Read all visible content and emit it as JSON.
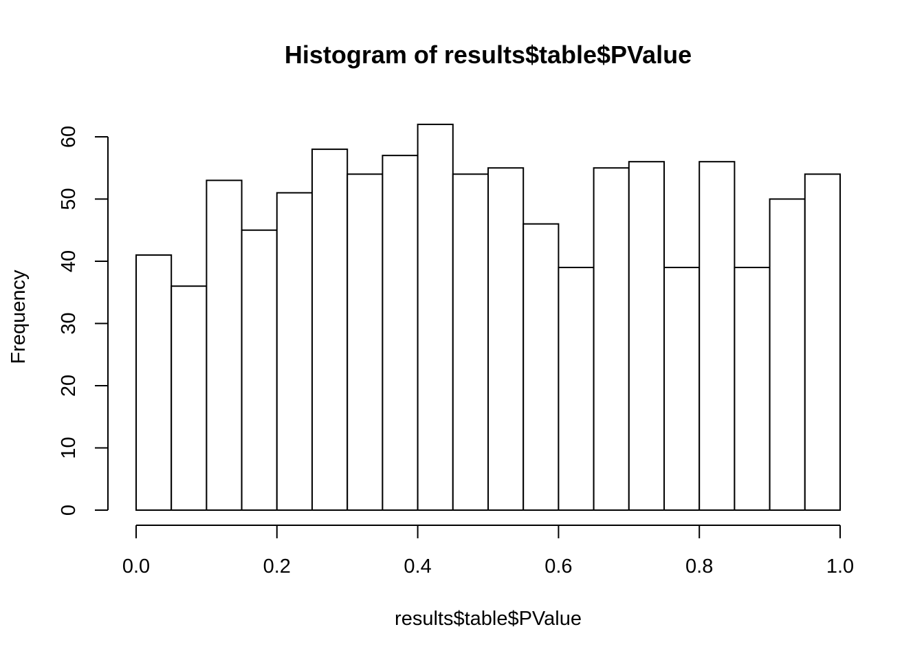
{
  "chart_data": {
    "type": "bar",
    "title": "Histogram of results$table$PValue",
    "xlabel": "results$table$PValue",
    "ylabel": "Frequency",
    "bin_edges": [
      0.0,
      0.05,
      0.1,
      0.15,
      0.2,
      0.25,
      0.3,
      0.35,
      0.4,
      0.45,
      0.5,
      0.55,
      0.6,
      0.65,
      0.7,
      0.75,
      0.8,
      0.85,
      0.9,
      0.95,
      1.0
    ],
    "values": [
      41,
      36,
      53,
      45,
      51,
      58,
      54,
      57,
      62,
      54,
      55,
      46,
      39,
      55,
      56,
      39,
      56,
      39,
      50,
      54
    ],
    "xlim": [
      0.0,
      1.0
    ],
    "ylim": [
      0,
      60
    ],
    "x_ticks": [
      0.0,
      0.2,
      0.4,
      0.6,
      0.8,
      1.0
    ],
    "x_tick_labels": [
      "0.0",
      "0.2",
      "0.4",
      "0.6",
      "0.8",
      "1.0"
    ],
    "y_ticks": [
      0,
      10,
      20,
      30,
      40,
      50,
      60
    ],
    "y_tick_labels": [
      "0",
      "10",
      "20",
      "30",
      "40",
      "50",
      "60"
    ],
    "grid": false,
    "bar_fill": "#ffffff",
    "bar_stroke": "#000000"
  }
}
